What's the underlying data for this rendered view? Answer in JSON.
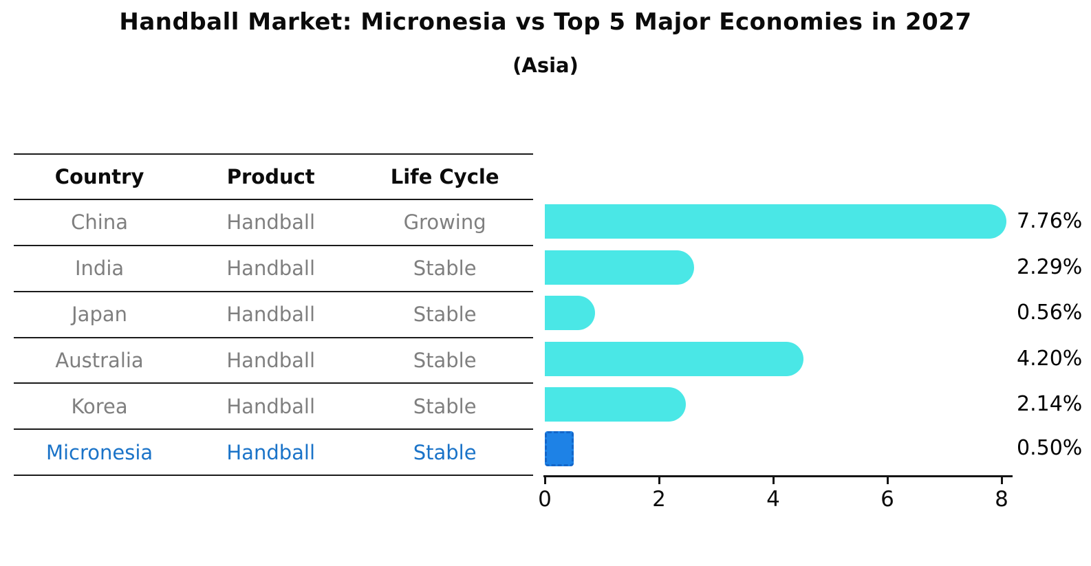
{
  "title": "Handball Market: Micronesia vs Top 5 Major Economies in 2027",
  "subtitle": "(Asia)",
  "table": {
    "headers": [
      "Country",
      "Product",
      "Life Cycle"
    ],
    "rows": [
      {
        "country": "China",
        "product": "Handball",
        "life_cycle": "Growing"
      },
      {
        "country": "India",
        "product": "Handball",
        "life_cycle": "Stable"
      },
      {
        "country": "Japan",
        "product": "Handball",
        "life_cycle": "Stable"
      },
      {
        "country": "Australia",
        "product": "Handball",
        "life_cycle": "Stable"
      },
      {
        "country": "Korea",
        "product": "Handball",
        "life_cycle": "Stable"
      },
      {
        "country": "Micronesia",
        "product": "Handball",
        "life_cycle": "Stable"
      }
    ]
  },
  "chart_data": {
    "type": "bar",
    "orientation": "horizontal",
    "title": "Handball Market: Micronesia vs Top 5 Major Economies in 2027 (Asia)",
    "categories": [
      "China",
      "India",
      "Japan",
      "Australia",
      "Korea",
      "Micronesia"
    ],
    "values": [
      7.76,
      2.29,
      0.56,
      4.2,
      2.14,
      0.5
    ],
    "value_labels": [
      "7.76%",
      "2.29%",
      "0.56%",
      "4.20%",
      "2.14%",
      "0.50%"
    ],
    "xticks": [
      "0",
      "2",
      "4",
      "6",
      "8"
    ],
    "xlim": [
      0,
      8
    ],
    "grid": false,
    "legend": false,
    "highlight_index": 5,
    "bar_color": "#4AE7E6",
    "highlight_bar_color": "#1E82E6",
    "highlight_border_color": "#1366C9",
    "highlight_text_color": "#1A73C8"
  }
}
